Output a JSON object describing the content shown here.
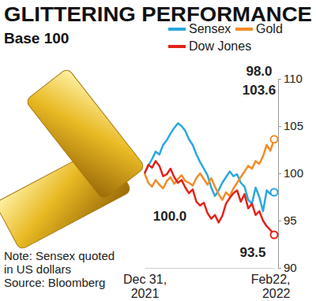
{
  "chart_data": {
    "type": "line",
    "title": "GLITTERING PERFORMANCE",
    "subtitle": "Base 100",
    "note": [
      "Note: Sensex quoted",
      "in US dollars"
    ],
    "source": "Source: Bloomberg",
    "categories": [
      "Dec 31, 2021",
      null,
      null,
      null,
      null,
      null,
      null,
      null,
      null,
      null,
      null,
      null,
      null,
      null,
      null,
      null,
      null,
      null,
      null,
      null,
      null,
      null,
      null,
      null,
      null,
      null,
      null,
      null,
      null,
      null,
      null,
      null,
      null,
      null,
      null,
      "Feb22, 2022"
    ],
    "series": [
      {
        "name": "Sensex",
        "color": "#29a8e0",
        "values": [
          100,
          100.8,
          101.5,
          102.3,
          102.0,
          103.0,
          103.5,
          104.2,
          104.8,
          105.3,
          105.0,
          104.5,
          103.6,
          103.0,
          102.0,
          101.2,
          100.5,
          99.8,
          98.5,
          97.6,
          98.2,
          99.0,
          99.6,
          100.2,
          99.7,
          99.9,
          99.0,
          98.6,
          97.2,
          96.8,
          98.5,
          97.5,
          96.0,
          98.2,
          97.8,
          98.0
        ]
      },
      {
        "name": "Gold",
        "color": "#f28c28",
        "values": [
          100,
          99.0,
          98.6,
          99.3,
          98.8,
          98.4,
          99.2,
          99.6,
          98.9,
          99.4,
          99.8,
          99.2,
          99.0,
          98.7,
          99.5,
          100.0,
          99.4,
          98.8,
          99.5,
          98.6,
          97.8,
          97.2,
          98.0,
          97.6,
          98.4,
          99.0,
          99.6,
          100.2,
          100.8,
          100.5,
          101.3,
          101.0,
          101.8,
          103.0,
          102.4,
          103.6
        ]
      },
      {
        "name": "Dow Jones",
        "color": "#e2231a",
        "values": [
          100,
          100.9,
          100.6,
          101.3,
          100.8,
          99.7,
          99.9,
          100.5,
          99.6,
          99.0,
          99.3,
          98.5,
          97.9,
          98.3,
          97.0,
          96.6,
          96.9,
          95.8,
          95.2,
          95.6,
          94.8,
          95.5,
          96.8,
          97.4,
          97.9,
          98.2,
          97.0,
          97.8,
          96.3,
          96.8,
          95.6,
          96.0,
          95.0,
          94.4,
          94.0,
          93.5
        ]
      }
    ],
    "ylim": [
      90,
      110
    ],
    "yticks": [
      90,
      95,
      100,
      105,
      110
    ],
    "grid": false,
    "legend": "top",
    "annotations": [
      "98.0",
      "103.6",
      "100.0",
      "93.5"
    ]
  }
}
